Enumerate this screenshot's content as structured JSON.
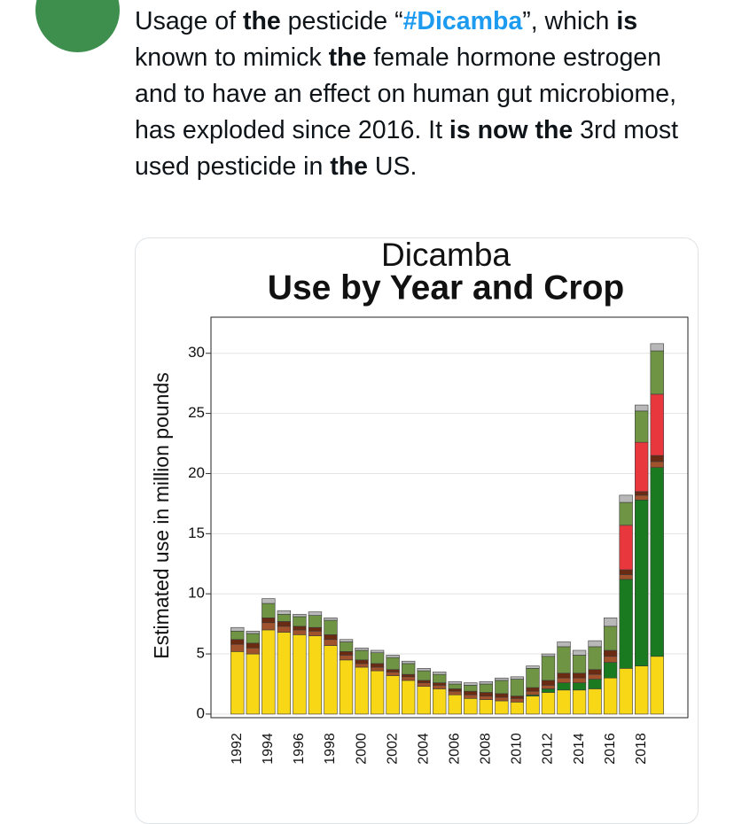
{
  "tweet": {
    "text_runs": [
      {
        "text": "Usage of ",
        "bold": false,
        "link": false
      },
      {
        "text": "the",
        "bold": true,
        "link": false
      },
      {
        "text": " pesticide “",
        "bold": false,
        "link": false
      },
      {
        "text": "#Dicamba",
        "bold": true,
        "link": true
      },
      {
        "text": "”, which ",
        "bold": false,
        "link": false
      },
      {
        "text": "is",
        "bold": true,
        "link": false
      },
      {
        "text": " known to mimick ",
        "bold": false,
        "link": false
      },
      {
        "text": "the",
        "bold": true,
        "link": false
      },
      {
        "text": " female hormone estrogen and to have an effect on human gut microbiome, has exploded since 2016. It ",
        "bold": false,
        "link": false
      },
      {
        "text": "is now the",
        "bold": true,
        "link": false
      },
      {
        "text": " 3rd most used pesticide in ",
        "bold": false,
        "link": false
      },
      {
        "text": "the",
        "bold": true,
        "link": false
      },
      {
        "text": " US.",
        "bold": false,
        "link": false
      }
    ]
  },
  "chart_data": {
    "type": "stacked_bar",
    "title": "Dicamba",
    "subtitle": "Use by Year and Crop",
    "y_label": "Estimated use in million pounds",
    "categories": [
      "1992",
      null,
      "1994",
      null,
      "1996",
      null,
      "1998",
      null,
      "2000",
      null,
      "2002",
      null,
      "2004",
      null,
      "2006",
      null,
      "2008",
      null,
      "2010",
      null,
      "2012",
      null,
      "2014",
      null,
      "2016",
      null,
      "2018",
      null
    ],
    "series": [
      {
        "color": "#f7d716",
        "values": [
          5.2,
          5.0,
          7.0,
          6.8,
          6.6,
          6.5,
          5.7,
          4.5,
          3.9,
          3.6,
          3.2,
          2.8,
          2.3,
          2.1,
          1.6,
          1.3,
          1.2,
          1.1,
          1.0,
          1.5,
          1.8,
          2.0,
          2.0,
          2.1,
          3.0,
          3.8,
          4.0,
          4.8
        ]
      },
      {
        "color": "#1a7a1f",
        "values": [
          0,
          0,
          0,
          0,
          0,
          0,
          0,
          0,
          0,
          0,
          0,
          0,
          0,
          0,
          0,
          0,
          0,
          0,
          0,
          0.1,
          0.3,
          0.6,
          0.6,
          0.8,
          1.3,
          7.4,
          13.8,
          15.7
        ]
      },
      {
        "color": "#a0522d",
        "values": [
          0.6,
          0.5,
          0.6,
          0.5,
          0.4,
          0.4,
          0.5,
          0.4,
          0.3,
          0.3,
          0.3,
          0.3,
          0.3,
          0.3,
          0.3,
          0.3,
          0.3,
          0.3,
          0.3,
          0.3,
          0.3,
          0.4,
          0.4,
          0.4,
          0.5,
          0.4,
          0.4,
          0.5
        ]
      },
      {
        "color": "#6b2a12",
        "values": [
          0.4,
          0.4,
          0.4,
          0.4,
          0.3,
          0.3,
          0.4,
          0.3,
          0.3,
          0.3,
          0.2,
          0.2,
          0.2,
          0.2,
          0.2,
          0.3,
          0.3,
          0.3,
          0.2,
          0.3,
          0.4,
          0.4,
          0.4,
          0.4,
          0.5,
          0.4,
          0.3,
          0.5
        ]
      },
      {
        "color": "#e8383d",
        "values": [
          0,
          0,
          0,
          0,
          0,
          0,
          0,
          0,
          0,
          0,
          0,
          0,
          0,
          0,
          0,
          0,
          0,
          0,
          0,
          0,
          0,
          0,
          0,
          0,
          0,
          3.7,
          4.1,
          5.1
        ]
      },
      {
        "color": "#6f9444",
        "values": [
          0.7,
          0.8,
          1.2,
          0.6,
          0.8,
          1.0,
          1.2,
          0.8,
          0.8,
          0.9,
          1.0,
          0.9,
          0.8,
          0.7,
          0.4,
          0.5,
          0.7,
          1.1,
          1.4,
          1.6,
          2.0,
          2.2,
          1.5,
          1.9,
          2.0,
          1.9,
          2.6,
          3.6
        ]
      },
      {
        "color": "#b8b8b8",
        "values": [
          0.3,
          0.2,
          0.4,
          0.3,
          0.2,
          0.3,
          0.2,
          0.2,
          0.2,
          0.2,
          0.2,
          0.2,
          0.2,
          0.2,
          0.2,
          0.2,
          0.2,
          0.2,
          0.2,
          0.2,
          0.2,
          0.4,
          0.4,
          0.5,
          0.7,
          0.6,
          0.5,
          0.6
        ]
      }
    ],
    "ylim": [
      -0.3,
      33
    ],
    "yticks": [
      0,
      5,
      10,
      15,
      20,
      25,
      30
    ],
    "grid": true
  }
}
